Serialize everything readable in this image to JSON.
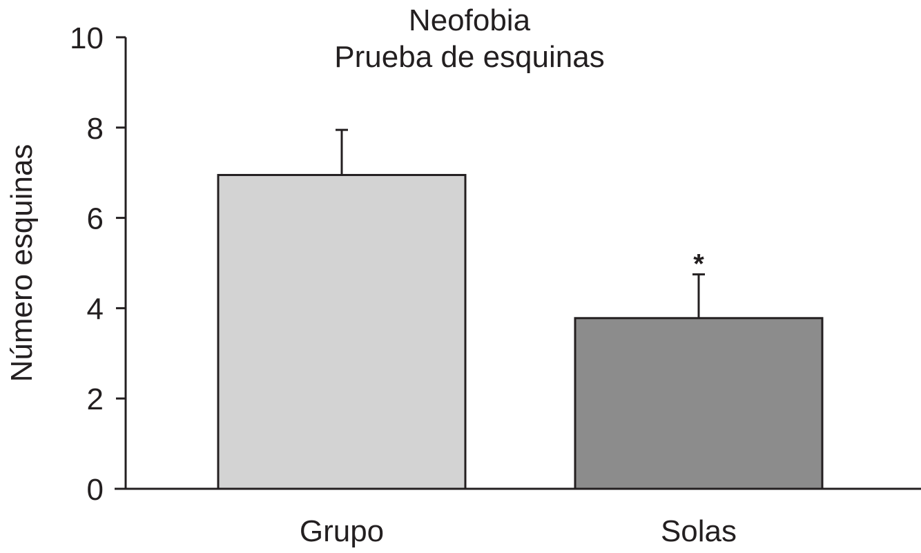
{
  "chart_data": {
    "type": "bar",
    "title": "Neofobia",
    "subtitle": "Prueba de esquinas",
    "ylabel": "Número esquinas",
    "xlabel": "",
    "categories": [
      "Grupo",
      "Solas"
    ],
    "values": [
      6.95,
      3.78
    ],
    "error_upper": [
      1.0,
      0.97
    ],
    "significance": [
      "",
      "*"
    ],
    "ylim": [
      0,
      10
    ],
    "yticks": [
      0,
      2,
      4,
      6,
      8,
      10
    ],
    "bar_colors": [
      "#d3d3d3",
      "#8c8c8c"
    ],
    "grid": false,
    "legend": "none"
  }
}
